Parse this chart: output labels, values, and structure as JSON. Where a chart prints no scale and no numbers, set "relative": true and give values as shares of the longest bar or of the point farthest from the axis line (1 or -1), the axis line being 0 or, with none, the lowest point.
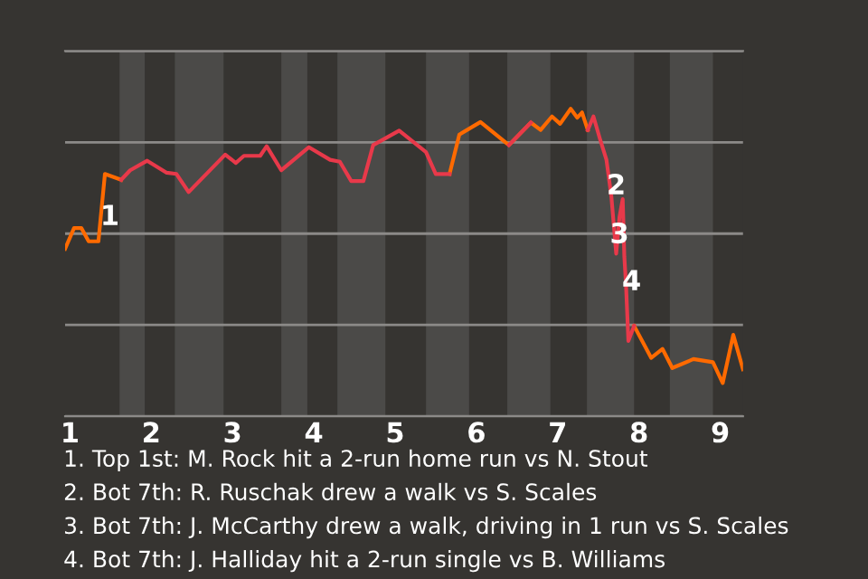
{
  "chart_data": {
    "type": "line",
    "relative": true,
    "x": [
      0.94,
      1.05,
      1.14,
      1.23,
      1.35,
      1.43,
      1.63,
      1.74,
      1.95,
      2.19,
      2.31,
      2.46,
      2.91,
      3.04,
      3.14,
      3.34,
      3.42,
      3.6,
      3.94,
      4.2,
      4.32,
      4.46,
      4.61,
      4.73,
      5.05,
      5.38,
      5.5,
      5.67,
      5.79,
      6.05,
      6.4,
      6.67,
      6.79,
      6.93,
      7.03,
      7.16,
      7.24,
      7.3,
      7.37,
      7.44,
      7.52,
      7.6,
      7.66,
      7.72,
      7.76,
      7.8,
      7.82,
      7.84,
      7.87,
      7.94,
      8.15,
      8.29,
      8.41,
      8.67,
      8.91,
      9.03,
      9.16,
      9.28
    ],
    "series": [
      {
        "color": "#ff6a00",
        "values": [
          0.545,
          0.612,
          0.612,
          0.569,
          0.569,
          0.788,
          0.769,
          null,
          null,
          null,
          null,
          null,
          null,
          null,
          null,
          null,
          null,
          null,
          null,
          null,
          null,
          null,
          null,
          null,
          null,
          null,
          null,
          0.788,
          0.916,
          0.957,
          0.882,
          0.955,
          0.931,
          0.975,
          0.951,
          1,
          0.971,
          0.988,
          0.931,
          null,
          null,
          null,
          null,
          null,
          null,
          null,
          null,
          null,
          null,
          0.294,
          0.19,
          0.219,
          0.157,
          0.186,
          0.176,
          0.108,
          0.265,
          0.153
        ]
      },
      {
        "color": "#e8394a",
        "values": [
          null,
          null,
          null,
          null,
          null,
          null,
          0.769,
          0.8,
          0.831,
          0.792,
          0.788,
          0.729,
          0.851,
          0.824,
          0.847,
          0.847,
          0.878,
          0.8,
          0.875,
          0.834,
          0.828,
          0.765,
          0.765,
          0.882,
          0.929,
          0.859,
          0.788,
          0.788,
          null,
          null,
          0.882,
          0.955,
          null,
          null,
          null,
          null,
          null,
          null,
          0.931,
          0.975,
          0.902,
          0.834,
          0.716,
          0.529,
          0.647,
          0.706,
          0.519,
          0.431,
          0.245,
          0.294,
          null,
          null,
          null,
          null,
          null,
          null,
          null,
          null
        ]
      }
    ],
    "xlim": [
      0.94,
      9.28
    ],
    "xticks": [
      1,
      2,
      3,
      4,
      5,
      6,
      7,
      8,
      9
    ],
    "bands": [
      {
        "axis": "x",
        "from": 1.61,
        "to": 1.92,
        "color": "#4b4a48"
      },
      {
        "axis": "x",
        "from": 2.29,
        "to": 2.89,
        "color": "#4b4a48"
      },
      {
        "axis": "x",
        "from": 3.6,
        "to": 3.92,
        "color": "#4b4a48"
      },
      {
        "axis": "x",
        "from": 4.29,
        "to": 4.88,
        "color": "#4b4a48"
      },
      {
        "axis": "x",
        "from": 5.38,
        "to": 5.91,
        "color": "#4b4a48"
      },
      {
        "axis": "x",
        "from": 6.38,
        "to": 6.91,
        "color": "#4b4a48"
      },
      {
        "axis": "x",
        "from": 7.36,
        "to": 7.94,
        "color": "#4b4a48"
      },
      {
        "axis": "x",
        "from": 8.38,
        "to": 8.91,
        "color": "#4b4a48"
      }
    ],
    "grid": "y",
    "legend": false,
    "marker": "none",
    "line_style": "solid",
    "annotations": [
      {
        "text": "1",
        "x": 1.49,
        "y": 0.647
      },
      {
        "text": "2",
        "x": 7.72,
        "y": 0.747
      },
      {
        "text": "3",
        "x": 7.76,
        "y": 0.588
      },
      {
        "text": "4",
        "x": 7.91,
        "y": 0.435
      },
      "1. Top 1st: M. Rock hit a 2-run home run vs N. Stout",
      "2. Bot 7th: R. Ruschak drew a walk vs S. Scales",
      "3. Bot 7th: J. McCarthy drew a walk, driving in 1 run vs S. Scales",
      "4. Bot 7th: J. Halliday hit a 2-run single vs B. Williams"
    ]
  }
}
